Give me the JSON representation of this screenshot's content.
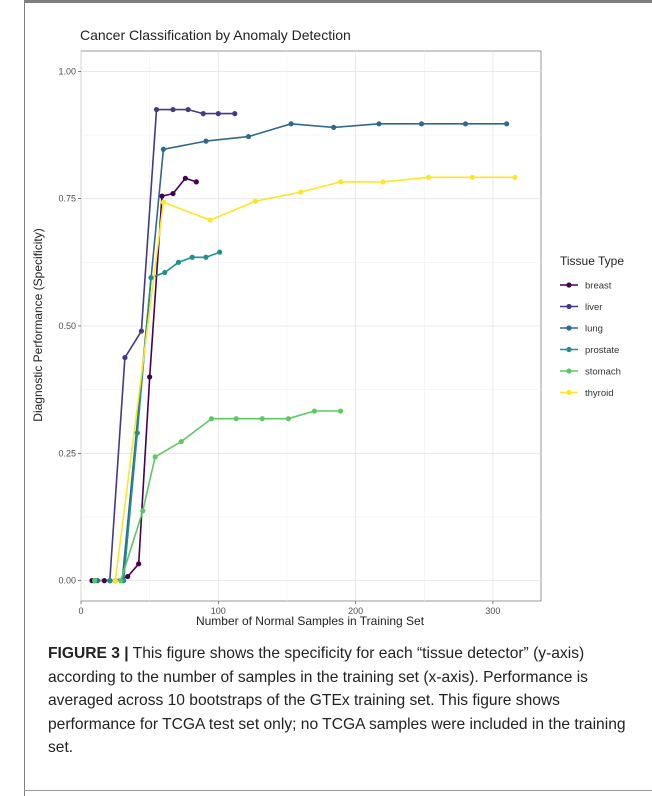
{
  "chart_data": {
    "type": "line",
    "title": "Cancer Classification by Anomaly Detection",
    "xlabel": "Number of Normal Samples in Training Set",
    "ylabel": "Diagnostic Performance (Specificity)",
    "xlim": [
      0,
      335
    ],
    "ylim": [
      -0.04,
      1.04
    ],
    "xticks": [
      0,
      100,
      200,
      300
    ],
    "xtick_labels": [
      "0",
      "100",
      "200",
      "300"
    ],
    "yticks": [
      0.0,
      0.25,
      0.5,
      0.75,
      1.0
    ],
    "ytick_labels": [
      "0.00",
      "0.25",
      "0.50",
      "0.75",
      "1.00"
    ],
    "grid": true,
    "legend_title": "Tissue Type",
    "legend_position": "right",
    "series": [
      {
        "name": "breast",
        "color": "#440154",
        "x": [
          8,
          17,
          25,
          34,
          42,
          50,
          59,
          67,
          76,
          84
        ],
        "y": [
          0.0,
          0.0,
          0.0,
          0.008,
          0.033,
          0.4,
          0.755,
          0.76,
          0.79,
          0.783
        ]
      },
      {
        "name": "liver",
        "color": "#443a83",
        "x": [
          10,
          21,
          32,
          44,
          55,
          67,
          78,
          89,
          100,
          112
        ],
        "y": [
          0.0,
          0.0,
          0.438,
          0.49,
          0.925,
          0.925,
          0.925,
          0.917,
          0.917,
          0.917
        ]
      },
      {
        "name": "lung",
        "color": "#31688e",
        "x": [
          12,
          30,
          60,
          91,
          122,
          153,
          184,
          217,
          248,
          280,
          310
        ],
        "y": [
          0.0,
          0.0,
          0.847,
          0.863,
          0.872,
          0.897,
          0.89,
          0.897,
          0.897,
          0.897,
          0.897
        ]
      },
      {
        "name": "prostate",
        "color": "#21908d",
        "x": [
          10,
          21,
          31,
          41,
          51,
          61,
          71,
          81,
          91,
          101
        ],
        "y": [
          0.0,
          0.0,
          0.0,
          0.29,
          0.595,
          0.605,
          0.625,
          0.635,
          0.635,
          0.645
        ]
      },
      {
        "name": "stomach",
        "color": "#5dc963",
        "x": [
          10,
          29,
          45,
          54,
          73,
          95,
          113,
          132,
          151,
          170,
          189
        ],
        "y": [
          0.0,
          0.0,
          0.137,
          0.243,
          0.273,
          0.318,
          0.318,
          0.318,
          0.318,
          0.333,
          0.333
        ]
      },
      {
        "name": "thyroid",
        "color": "#fde725",
        "x": [
          25,
          60,
          94,
          127,
          160,
          189,
          220,
          253,
          285,
          316
        ],
        "y": [
          0.0,
          0.743,
          0.708,
          0.745,
          0.763,
          0.783,
          0.783,
          0.792,
          0.792,
          0.792
        ]
      }
    ]
  },
  "caption": {
    "label": "FIGURE 3 |",
    "text": " This figure shows the specificity for each “tissue detector” (y-axis) according to the number of samples in the training set (x-axis). Performance is averaged across 10 bootstraps of the GTEx training set. This figure shows performance for TCGA test set only; no TCGA samples were included in the training set."
  }
}
